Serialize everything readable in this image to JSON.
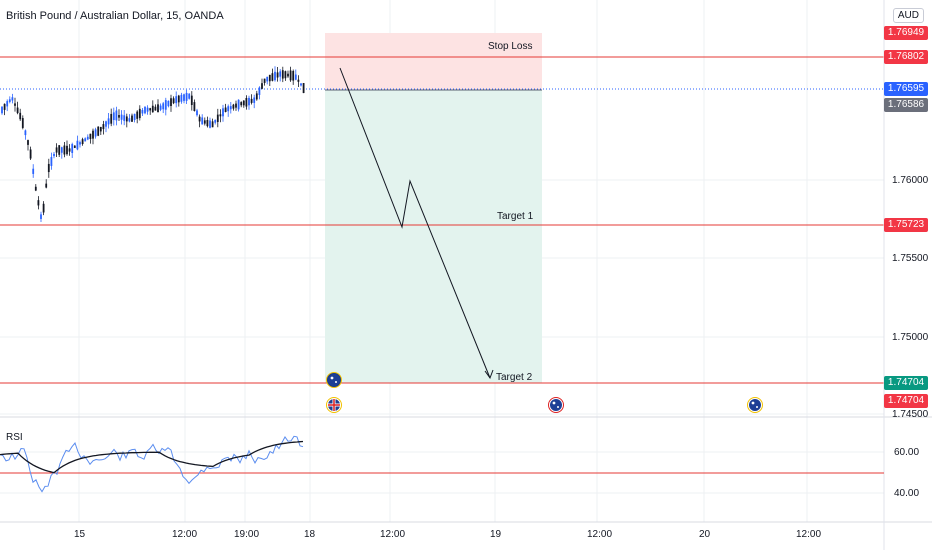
{
  "header": {
    "title": "British Pound / Australian Dollar, 15, OANDA",
    "currency_button": "AUD"
  },
  "colors": {
    "up": "#2962ff",
    "down": "#131722",
    "level_line": "#e53935",
    "stop_zone": "#fde3e3",
    "target_zone": "#e3f3ee",
    "rsi": "#5b8def",
    "rsi_ma": "#131722"
  },
  "price_axis": {
    "ticks": [
      "1.76000",
      "1.75500",
      "1.75000",
      "1.74500"
    ]
  },
  "price_badges": [
    {
      "text": "1.76949",
      "color": "#f23645"
    },
    {
      "text": "1.76802",
      "color": "#f23645"
    },
    {
      "text": "1.76595",
      "color": "#2962ff"
    },
    {
      "text": "1.76586",
      "color": "#6b6f7b"
    },
    {
      "text": "1.75723",
      "color": "#f23645"
    },
    {
      "text": "1.74704",
      "color": "#089981"
    },
    {
      "text": "1.74704",
      "color": "#f23645"
    }
  ],
  "annotations": {
    "stop_loss": "Stop Loss",
    "target_1": "Target 1",
    "target_2": "Target 2"
  },
  "rsi_panel": {
    "label": "RSI",
    "ticks": [
      "60.00",
      "40.00"
    ]
  },
  "time_axis": {
    "labels": [
      "15",
      "12:00",
      "19:00",
      "18",
      "12:00",
      "19",
      "12:00",
      "20",
      "12:00"
    ]
  },
  "event_icons": [
    {
      "name": "australia-flag-icon"
    },
    {
      "name": "uk-flag-icon"
    },
    {
      "name": "australia-flag-icon"
    },
    {
      "name": "australia-flag-icon"
    }
  ]
}
